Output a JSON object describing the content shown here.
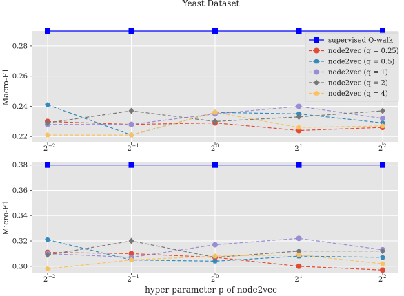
{
  "figure_title": "Yeast Dataset",
  "x_tick_labels": [
    "2",
    "2",
    "2",
    "2",
    "2"
  ],
  "x_tick_exponents": [
    "−2",
    "−1",
    "0",
    "1",
    "2"
  ],
  "chart_data": [
    {
      "type": "line",
      "title": "Yeast Dataset",
      "xlabel": "",
      "ylabel": "Macro-F1",
      "x": [
        -2,
        -1,
        0,
        1,
        2
      ],
      "x_scale": "log2",
      "ylim": [
        0.216,
        0.29
      ],
      "yticks": [
        0.22,
        0.24,
        0.26,
        0.28
      ],
      "ytick_labels": [
        "0.22",
        "0.24",
        "0.26",
        "0.28"
      ],
      "grid": true,
      "legend_position": "top-right",
      "series": [
        {
          "name": "supervised Q-walk",
          "values": [
            0.29,
            0.29,
            0.29,
            0.29,
            0.29
          ],
          "color": "#0000ff",
          "marker": "square",
          "style": "solid"
        },
        {
          "name": "node2vec (q = 0.25)",
          "values": [
            0.23,
            0.228,
            0.229,
            0.224,
            0.226
          ],
          "color": "#e24a33",
          "marker": "circle",
          "style": "dashed"
        },
        {
          "name": "node2vec (q = 0.5)",
          "values": [
            0.241,
            0.221,
            0.236,
            0.235,
            0.229
          ],
          "color": "#348abd",
          "marker": "pentagon",
          "style": "dashed"
        },
        {
          "name": "node2vec (q = 1)",
          "values": [
            0.228,
            0.228,
            0.235,
            0.24,
            0.232
          ],
          "color": "#988ed5",
          "marker": "circle",
          "style": "dashed"
        },
        {
          "name": "node2vec (q = 2)",
          "values": [
            0.229,
            0.237,
            0.23,
            0.233,
            0.237
          ],
          "color": "#777777",
          "marker": "diamond",
          "style": "dashed"
        },
        {
          "name": "node2vec (q = 4)",
          "values": [
            0.221,
            0.221,
            0.236,
            0.226,
            0.227
          ],
          "color": "#fbc15e",
          "marker": "pentagon",
          "style": "dashed"
        }
      ]
    },
    {
      "type": "line",
      "xlabel": "hyper-parameter p of node2vec",
      "ylabel": "Micro-F1",
      "x": [
        -2,
        -1,
        0,
        1,
        2
      ],
      "x_scale": "log2",
      "ylim": [
        0.295,
        0.382
      ],
      "yticks": [
        0.3,
        0.32,
        0.34,
        0.36,
        0.38
      ],
      "ytick_labels": [
        "0.30",
        "0.32",
        "0.34",
        "0.36",
        "0.38"
      ],
      "grid": true,
      "series": [
        {
          "name": "supervised Q-walk",
          "values": [
            0.38,
            0.38,
            0.38,
            0.38,
            0.38
          ],
          "color": "#0000ff",
          "marker": "square",
          "style": "solid"
        },
        {
          "name": "node2vec (q = 0.25)",
          "values": [
            0.311,
            0.31,
            0.307,
            0.3,
            0.297
          ],
          "color": "#e24a33",
          "marker": "circle",
          "style": "dashed"
        },
        {
          "name": "node2vec (q = 0.5)",
          "values": [
            0.321,
            0.305,
            0.304,
            0.308,
            0.307
          ],
          "color": "#348abd",
          "marker": "pentagon",
          "style": "dashed"
        },
        {
          "name": "node2vec (q = 1)",
          "values": [
            0.31,
            0.307,
            0.317,
            0.322,
            0.313
          ],
          "color": "#988ed5",
          "marker": "circle",
          "style": "dashed"
        },
        {
          "name": "node2vec (q = 2)",
          "values": [
            0.309,
            0.32,
            0.307,
            0.312,
            0.312
          ],
          "color": "#777777",
          "marker": "diamond",
          "style": "dashed"
        },
        {
          "name": "node2vec (q = 4)",
          "values": [
            0.298,
            0.305,
            0.308,
            0.309,
            0.302
          ],
          "color": "#fbc15e",
          "marker": "pentagon",
          "style": "dashed"
        }
      ]
    }
  ]
}
